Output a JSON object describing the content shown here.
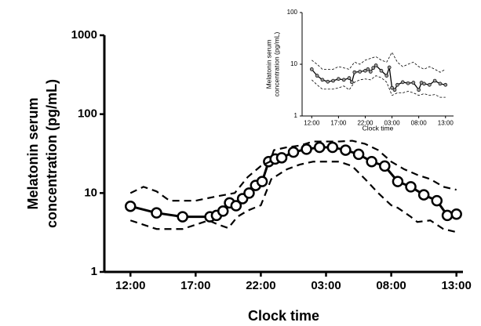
{
  "chart_data": [
    {
      "type": "line",
      "log_y": true,
      "x_label": "Clock time",
      "y_label": [
        "Melatonin serum",
        "concentration (pg/mL)"
      ],
      "xlim": [
        10,
        37.5
      ],
      "ylim": [
        1,
        1000
      ],
      "xticks": [
        {
          "value": 12,
          "label": "12:00"
        },
        {
          "value": 17,
          "label": "17:00"
        },
        {
          "value": 22,
          "label": "22:00"
        },
        {
          "value": 27,
          "label": "03:00"
        },
        {
          "value": 32,
          "label": "08:00"
        },
        {
          "value": 37,
          "label": "13:00"
        }
      ],
      "yticks": [
        1,
        10,
        100,
        1000
      ],
      "series": [
        {
          "color": "#000000",
          "style": "solid",
          "markers": true,
          "x": [
            12,
            14,
            16,
            18.1,
            18.6,
            19.1,
            19.6,
            20.1,
            20.6,
            21.1,
            21.6,
            22.1,
            22.6,
            23.1,
            23.6,
            24.5,
            25.5,
            26.5,
            27.5,
            28.5,
            29.5,
            30.5,
            31.5,
            32.5,
            33.5,
            34.5,
            35.5,
            36.3,
            37
          ],
          "values": [
            6.8,
            5.6,
            5.0,
            5.0,
            5.2,
            5.9,
            7.5,
            6.9,
            8.5,
            10,
            12.5,
            14,
            25,
            27,
            28,
            33,
            36,
            38,
            38,
            35,
            31,
            25,
            22,
            14,
            12,
            9.5,
            8,
            5.2,
            5.4
          ]
        },
        {
          "color": "#000000",
          "style": "dashed",
          "markers": false,
          "x": [
            12,
            13,
            14,
            15,
            17,
            18.5,
            20,
            21,
            22,
            22.7,
            23,
            24,
            25,
            26,
            28,
            29,
            30,
            31,
            32,
            33,
            34,
            35,
            36,
            37
          ],
          "values": [
            10,
            12,
            10.5,
            8,
            8,
            9,
            10,
            16,
            22,
            25,
            35,
            38,
            40,
            45,
            45,
            46,
            42,
            35,
            25,
            20,
            17,
            15,
            12,
            11
          ]
        },
        {
          "color": "#000000",
          "style": "dashed",
          "markers": false,
          "x": [
            12,
            14,
            16,
            18,
            18.7,
            19.5,
            20.2,
            21,
            22,
            22.8,
            24,
            25,
            26,
            28,
            29,
            30,
            31,
            32,
            32.5,
            33.5,
            34,
            35,
            36,
            37
          ],
          "values": [
            4.5,
            3.5,
            3.5,
            4.5,
            4,
            3.6,
            5,
            6,
            7,
            15,
            20,
            23,
            25,
            25,
            22,
            15,
            10,
            7,
            6.5,
            5,
            4.3,
            4.5,
            3.5,
            3.2
          ]
        }
      ]
    },
    {
      "type": "line",
      "log_y": true,
      "x_label": "Clock time",
      "y_label": [
        "Melatonin serum",
        "concentration (pg/mL)"
      ],
      "xlim": [
        10.2,
        38.5
      ],
      "ylim": [
        1,
        100
      ],
      "xticks": [
        {
          "value": 12,
          "label": "12:00"
        },
        {
          "value": 17,
          "label": "17:00"
        },
        {
          "value": 22,
          "label": "22:00"
        },
        {
          "value": 27,
          "label": "03:00"
        },
        {
          "value": 32,
          "label": "08:00"
        },
        {
          "value": 37,
          "label": "13:00"
        }
      ],
      "yticks": [
        1,
        10,
        100
      ],
      "series": [
        {
          "color": "#000000",
          "style": "solid",
          "markers": true,
          "x": [
            12,
            13,
            14,
            15,
            16,
            17,
            18,
            19,
            19.5,
            20,
            21,
            22,
            22.5,
            23,
            23.5,
            24,
            25,
            26,
            26.5,
            27,
            27.5,
            28,
            29,
            30,
            31,
            32,
            32.5,
            33,
            34,
            35,
            36,
            37
          ],
          "values": [
            8,
            6,
            5,
            4.6,
            4.8,
            5.2,
            5,
            5.4,
            4.5,
            7,
            7.2,
            7.5,
            8,
            7.2,
            8.5,
            9.5,
            7.5,
            6,
            8.7,
            3.5,
            3.2,
            4,
            4.5,
            4.3,
            4.4,
            3.2,
            4.4,
            4.2,
            4,
            4.8,
            4.2,
            4.0
          ]
        },
        {
          "color": "#000000",
          "style": "dashed",
          "markers": false,
          "x": [
            12,
            13,
            14,
            16,
            17,
            18,
            19,
            20,
            21,
            22,
            23,
            24,
            25,
            26,
            27,
            28,
            29,
            30,
            31,
            32,
            33,
            34,
            35,
            36,
            37
          ],
          "values": [
            12,
            10,
            8,
            8,
            9,
            8.5,
            8,
            11,
            10,
            12,
            13,
            14,
            12,
            11,
            17,
            11,
            9,
            10,
            11,
            9,
            8,
            9,
            8,
            7,
            8
          ]
        },
        {
          "color": "#000000",
          "style": "dashed",
          "markers": false,
          "x": [
            12,
            13,
            14,
            16,
            17,
            18,
            19,
            20,
            21,
            22,
            23,
            24,
            25,
            26,
            27,
            28,
            29,
            30,
            31,
            32,
            33,
            34,
            35,
            36,
            37
          ],
          "values": [
            5,
            4,
            3.3,
            3.3,
            3.5,
            3.8,
            3.2,
            4.5,
            5,
            5.2,
            5,
            6,
            5.5,
            4.5,
            2.5,
            2.8,
            2.8,
            3,
            2.8,
            2.5,
            2.7,
            2.5,
            2.6,
            2.3,
            2.3
          ]
        }
      ]
    }
  ]
}
